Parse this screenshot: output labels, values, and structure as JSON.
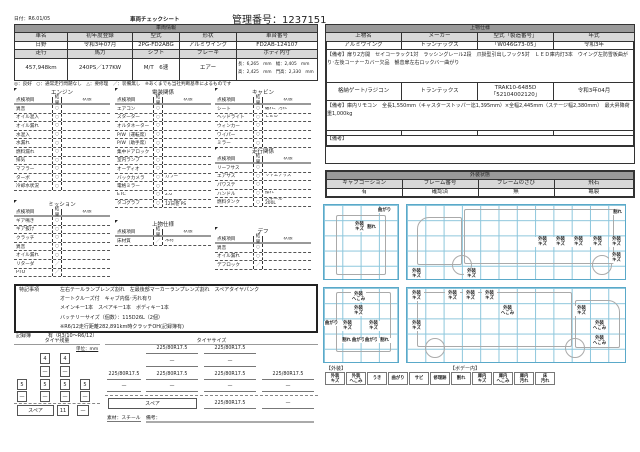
{
  "header": {
    "date": "日付：R6.01/05",
    "title": "車両チェックシート",
    "mgmt": "管理番号：1237151"
  },
  "vehicle": {
    "section": "車両情報",
    "h1": [
      "車名",
      "初年度登録",
      "型式",
      "形状",
      "車台番号"
    ],
    "v1": [
      "日野",
      "令和3年07月",
      "2PG-FD2ABG",
      "アルミウイング",
      "FD2AB-124107"
    ],
    "h2": [
      "走行",
      "馬力",
      "シフト",
      "ブレーキ",
      "ボディ内寸"
    ],
    "v2": [
      "457,948km",
      "240PS／177KW",
      "M/T　6速",
      "エアー"
    ],
    "body": {
      "l1": "長：6,265　mm　幅：2,405　mm",
      "l2": "高：2,425　mm　門高：2,330　mm"
    }
  },
  "legend": "◎：良好　○：通常走行問題なし　△：要修理　／：装備無し　※あくまでも当社判断基準によるものです",
  "cols": {
    "item": "点検項目",
    "result": "結果",
    "state": "状態"
  },
  "engine": {
    "title": "エンジン",
    "rows": [
      [
        "異音",
        "○",
        ""
      ],
      [
        "オイル混入",
        "○",
        ""
      ],
      [
        "オイル漏れ",
        "○",
        ""
      ],
      [
        "水混入",
        "○",
        ""
      ],
      [
        "水漏れ",
        "○",
        ""
      ],
      [
        "燃料漏れ",
        "○",
        ""
      ],
      [
        "排気",
        "○",
        ""
      ],
      [
        "マフラー",
        "○",
        ""
      ],
      [
        "ターボ",
        "○",
        ""
      ],
      [
        "冷却水状況",
        "○",
        ""
      ]
    ]
  },
  "electric": {
    "title": "電装関係",
    "rows": [
      [
        "エアコン",
        "○",
        ""
      ],
      [
        "スターター",
        "○",
        ""
      ],
      [
        "オルタネーター",
        "○",
        ""
      ],
      [
        "P/W（運転席）",
        "○",
        ""
      ],
      [
        "P/W（助手席）",
        "○",
        ""
      ],
      [
        "集中ドアロック",
        "○",
        ""
      ],
      [
        "室内ランプ",
        "○",
        ""
      ],
      [
        "オーディオ",
        "○",
        ""
      ],
      [
        "バックカメラ",
        "○",
        "カラー"
      ],
      [
        "電格ミラー",
        "○",
        ""
      ],
      [
        "ETC",
        "○",
        "2.0"
      ],
      [
        "タコグラフ",
        "○",
        "アナログ\n12日巻 PS"
      ]
    ]
  },
  "cabin": {
    "title": "キャビン",
    "rows": [
      [
        "シート",
        "○",
        "破れ、汚れ"
      ],
      [
        "ヘッドライト",
        "○",
        "ＬＥＤ"
      ],
      [
        "ウィンカー",
        "○",
        ""
      ],
      [
        "ワイパー",
        "○",
        ""
      ],
      [
        "ミラー",
        "○",
        ""
      ]
    ]
  },
  "running": {
    "title": "走行関係",
    "rows": [
      [
        "リーフサス",
        "○",
        ""
      ],
      [
        "エアサス",
        "○",
        "リヤエアサス"
      ],
      [
        "パワステ",
        "○",
        ""
      ],
      [
        "ハンドル",
        "○",
        "擦れ"
      ],
      [
        "燃料タンク",
        "○",
        "スチール\n200L"
      ]
    ]
  },
  "mission": {
    "title": "ミッション",
    "rows": [
      [
        "ギア鳴き",
        "○",
        ""
      ],
      [
        "ギア抜け",
        "○",
        ""
      ],
      [
        "クラッチ",
        "○",
        ""
      ],
      [
        "異音",
        "○",
        ""
      ],
      [
        "オイル漏れ",
        "○",
        ""
      ],
      [
        "リターダ",
        "／",
        ""
      ],
      [
        "PTO",
        "／",
        ""
      ]
    ]
  },
  "upper": {
    "title": "上物仕様",
    "rows": [
      [
        "床材質",
        "／",
        "木材"
      ]
    ]
  },
  "diff": {
    "title": "デフ",
    "rows": [
      [
        "異音",
        "○",
        ""
      ],
      [
        "オイル漏れ",
        "○",
        ""
      ],
      [
        "デフロック",
        "／",
        ""
      ]
    ]
  },
  "notes": {
    "label": "特記事項",
    "lines": [
      "左右テールランプレンズ割れ　左最後部マーカーランプレンズ割れ　スペアタイヤパンク",
      "オートクルーズ付　キャブ内傷･汚れ有り",
      "メインキー1本　スペアキー1本　ボディキー1本",
      "バッテリーサイズ（個数）：115D26L（2個）",
      "※R6/12走行距離282,891km時クラッチOH(記録簿有)"
    ],
    "record_label": "記録簿",
    "record": "有（R3/10〜R6/12）"
  },
  "tire_remain": {
    "title": "タイヤ残量",
    "unit": "単位：mm",
    "front": [
      "4",
      "4"
    ],
    "front2": [
      "—",
      "—"
    ],
    "rear": [
      "5",
      "5",
      "5",
      "5"
    ],
    "rear2": [
      "—",
      "—",
      "—",
      "—"
    ],
    "spare_label": "スペア",
    "spare": "11",
    "spare2": "—"
  },
  "tire_size": {
    "title": "タイヤサイズ",
    "front": [
      "225/80R17.5",
      "225/80R17.5"
    ],
    "front2": [
      "—",
      "—"
    ],
    "rear": [
      "225/80R17.5",
      "225/80R17.5",
      "225/80R17.5",
      "225/80R17.5"
    ],
    "rear2": [
      "—",
      "—",
      "—",
      "—"
    ],
    "spare_label": "スペア",
    "spare": "225/80R17.5",
    "spare2": "—",
    "material": "素材：スチール",
    "remarks": "備考："
  },
  "upper_spec": {
    "section": "上物仕様",
    "h": [
      "上物名",
      "メーカー",
      "型式「製造番号」",
      "年式"
    ],
    "r1": [
      "アルミウイング",
      "トランテックス",
      "「W046G73-05」",
      "令和3年"
    ],
    "n1": "【備考】扉り2方開　セイコーラック1対　ラッシングレール2段　爪掛型引出しフック5対　ＬＥＤ庫内灯3本　ウイング左防雪板曲がり･左後コーナーカバー欠品　観音扉左右ロックバー曲がり",
    "r2": [
      "格納ゲート/ラジコン",
      "トランテックス",
      "TRAK10-6485D\n「52104002120」",
      "令和3年04月"
    ],
    "n2": "【備考】庫内リモコン　全長1,550mm（キャスターストッパー迄1,395mm）×全幅2,445mm（ステージ幅2,380mm）　最大昇降荷重1,000kg",
    "n3": "【備考】"
  },
  "exterior": {
    "section": "外装状態",
    "h": [
      "キャブコーション",
      "フレーム番号",
      "フレームのさび",
      "飛石"
    ],
    "v": [
      "有",
      "確認済",
      "無",
      "亀裂"
    ]
  },
  "damage": {
    "front": [
      "曲がり",
      "外装\nキズ",
      "割れ"
    ],
    "side1": [
      "割れ",
      "外装\nキズ",
      "外装\nキズ",
      "外装\nキズ",
      "外装\nキズ",
      "外装\nキズ",
      "外装\nキズ",
      "外装\nキズ",
      "外装\nキズ"
    ],
    "rear": [
      "外装\nへこみ",
      "外装\nキズ",
      "曲がり",
      "外装\nキズ",
      "外装\nキズ",
      "割れ",
      "曲がり",
      "曲がり",
      "割れ"
    ],
    "side2": [
      "外装\nキズ",
      "外装\nキズ",
      "外装\nキズ",
      "外装\nキズ",
      "外装\nへこみ",
      "外装\nキズ",
      "外装\nキズ",
      "外装\nへこみ",
      "外装\nへこみ"
    ]
  },
  "damage_legend": {
    "ext_label": "【外装】",
    "body_label": "【ボデー内】",
    "items": [
      "外装\nキズ",
      "外装\nへこみ",
      "うき",
      "曲がり",
      "サビ",
      "修理跡",
      "割れ",
      "庫内\nキズ",
      "庫内\nへこみ",
      "庫内\n汚れ",
      "床\n汚れ"
    ]
  },
  "colors": {
    "section_bg": "#999999",
    "header_bg": "#d8d8d8",
    "grid": "#8cc6dc"
  }
}
